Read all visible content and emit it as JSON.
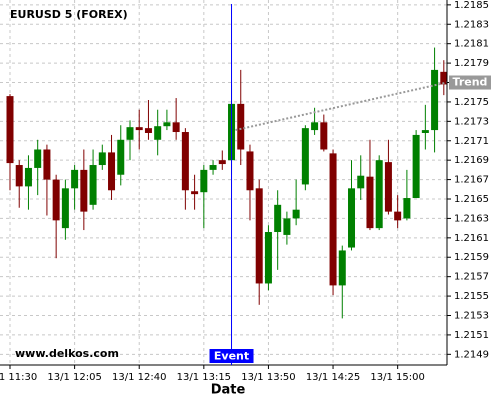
{
  "chart_data": {
    "type": "candlestick",
    "title": "EURUSD 5 (FOREX)",
    "x_label": "Date",
    "watermark": "www.delkos.com",
    "categories": [
      "13/1 11:30",
      null,
      null,
      null,
      null,
      null,
      null,
      "13/1 12:05",
      null,
      null,
      null,
      null,
      null,
      null,
      "13/1 12:40",
      null,
      null,
      null,
      null,
      null,
      null,
      "13/1 13:15",
      null,
      null,
      null,
      null,
      null,
      null,
      "13/1 13:50",
      null,
      null,
      null,
      null,
      null,
      null,
      "13/1 14:25",
      null,
      null,
      null,
      null,
      null,
      null,
      "13/1 15:00",
      null,
      null,
      null,
      null,
      null
    ],
    "open": [
      1.21756,
      1.21685,
      1.21663,
      1.21682,
      1.21701,
      1.2167,
      1.2162,
      1.21661,
      1.2168,
      1.21644,
      1.21685,
      1.21698,
      1.21675,
      1.21711,
      1.21724,
      1.21723,
      1.21711,
      1.21725,
      1.21729,
      1.21719,
      1.21658,
      1.21657,
      1.2168,
      1.2169,
      1.2169,
      1.21748,
      1.21699,
      1.21661,
      1.21563,
      1.21616,
      1.21613,
      1.2163,
      1.21665,
      1.21721,
      1.21729,
      1.21697,
      1.21561,
      1.216,
      1.21661,
      1.21673,
      1.2162,
      1.21688,
      1.21637,
      1.2163,
      1.21651,
      1.21718,
      1.21721,
      1.21781
    ],
    "high": [
      1.21758,
      1.2169,
      1.21695,
      1.21711,
      1.21706,
      1.21675,
      1.2167,
      1.21685,
      1.21701,
      1.21701,
      1.21706,
      1.21716,
      1.21726,
      1.21731,
      1.21742,
      1.21752,
      1.21742,
      1.21742,
      1.21754,
      1.21723,
      1.21675,
      1.21685,
      1.2169,
      1.217,
      1.21768,
      1.21783,
      1.21706,
      1.2167,
      1.21623,
      1.21659,
      1.21637,
      1.2167,
      1.21726,
      1.21744,
      1.21737,
      1.21701,
      1.21602,
      1.2169,
      1.21695,
      1.21711,
      1.21695,
      1.21711,
      1.21654,
      1.2168,
      1.21721,
      1.21747,
      1.21806,
      1.21793
    ],
    "low": [
      1.21659,
      1.21641,
      1.21639,
      1.21654,
      1.21633,
      1.21589,
      1.21608,
      1.21639,
      1.21618,
      1.21639,
      1.2168,
      1.21649,
      1.21664,
      1.2169,
      1.21701,
      1.21711,
      1.21695,
      1.21721,
      1.21711,
      1.21639,
      1.21639,
      1.2162,
      1.21675,
      1.2168,
      1.21675,
      1.21685,
      1.21628,
      1.21541,
      1.21556,
      1.21577,
      1.21603,
      1.21623,
      1.21659,
      1.21716,
      1.21699,
      1.21551,
      1.21527,
      1.21597,
      1.21649,
      1.21618,
      1.21618,
      1.21634,
      1.2162,
      1.21628,
      1.21651,
      1.21701,
      1.21698,
      1.21757
    ],
    "close": [
      1.21687,
      1.21663,
      1.21682,
      1.21701,
      1.2167,
      1.21628,
      1.21661,
      1.2168,
      1.21637,
      1.21685,
      1.21698,
      1.21659,
      1.21711,
      1.21724,
      1.21721,
      1.21718,
      1.21725,
      1.21729,
      1.21719,
      1.21659,
      1.21655,
      1.2168,
      1.21685,
      1.21686,
      1.21748,
      1.21701,
      1.21659,
      1.21563,
      1.21616,
      1.21644,
      1.2163,
      1.21639,
      1.21723,
      1.21729,
      1.21701,
      1.21561,
      1.21597,
      1.21661,
      1.21674,
      1.2162,
      1.2169,
      1.21637,
      1.21628,
      1.21651,
      1.21716,
      1.21721,
      1.21783,
      1.21768
    ],
    "up_color": "#008000",
    "down_color": "#800000",
    "ylim": [
      1.21479,
      1.21855
    ],
    "yticks": [
      1.2149,
      1.2151,
      1.2153,
      1.2155,
      1.2157,
      1.2159,
      1.2161,
      1.2163,
      1.2165,
      1.2167,
      1.2169,
      1.2171,
      1.2173,
      1.2175,
      1.2177,
      1.2179,
      1.2181,
      1.2183,
      1.2185
    ],
    "grid": true,
    "event": {
      "label": "Event",
      "category_index": 24,
      "color": "#0000ff"
    },
    "trend": {
      "label": "Trend",
      "start_index": 24,
      "end_index": 47,
      "values": [
        1.21721,
        1.2177
      ],
      "color": "#999999"
    }
  }
}
